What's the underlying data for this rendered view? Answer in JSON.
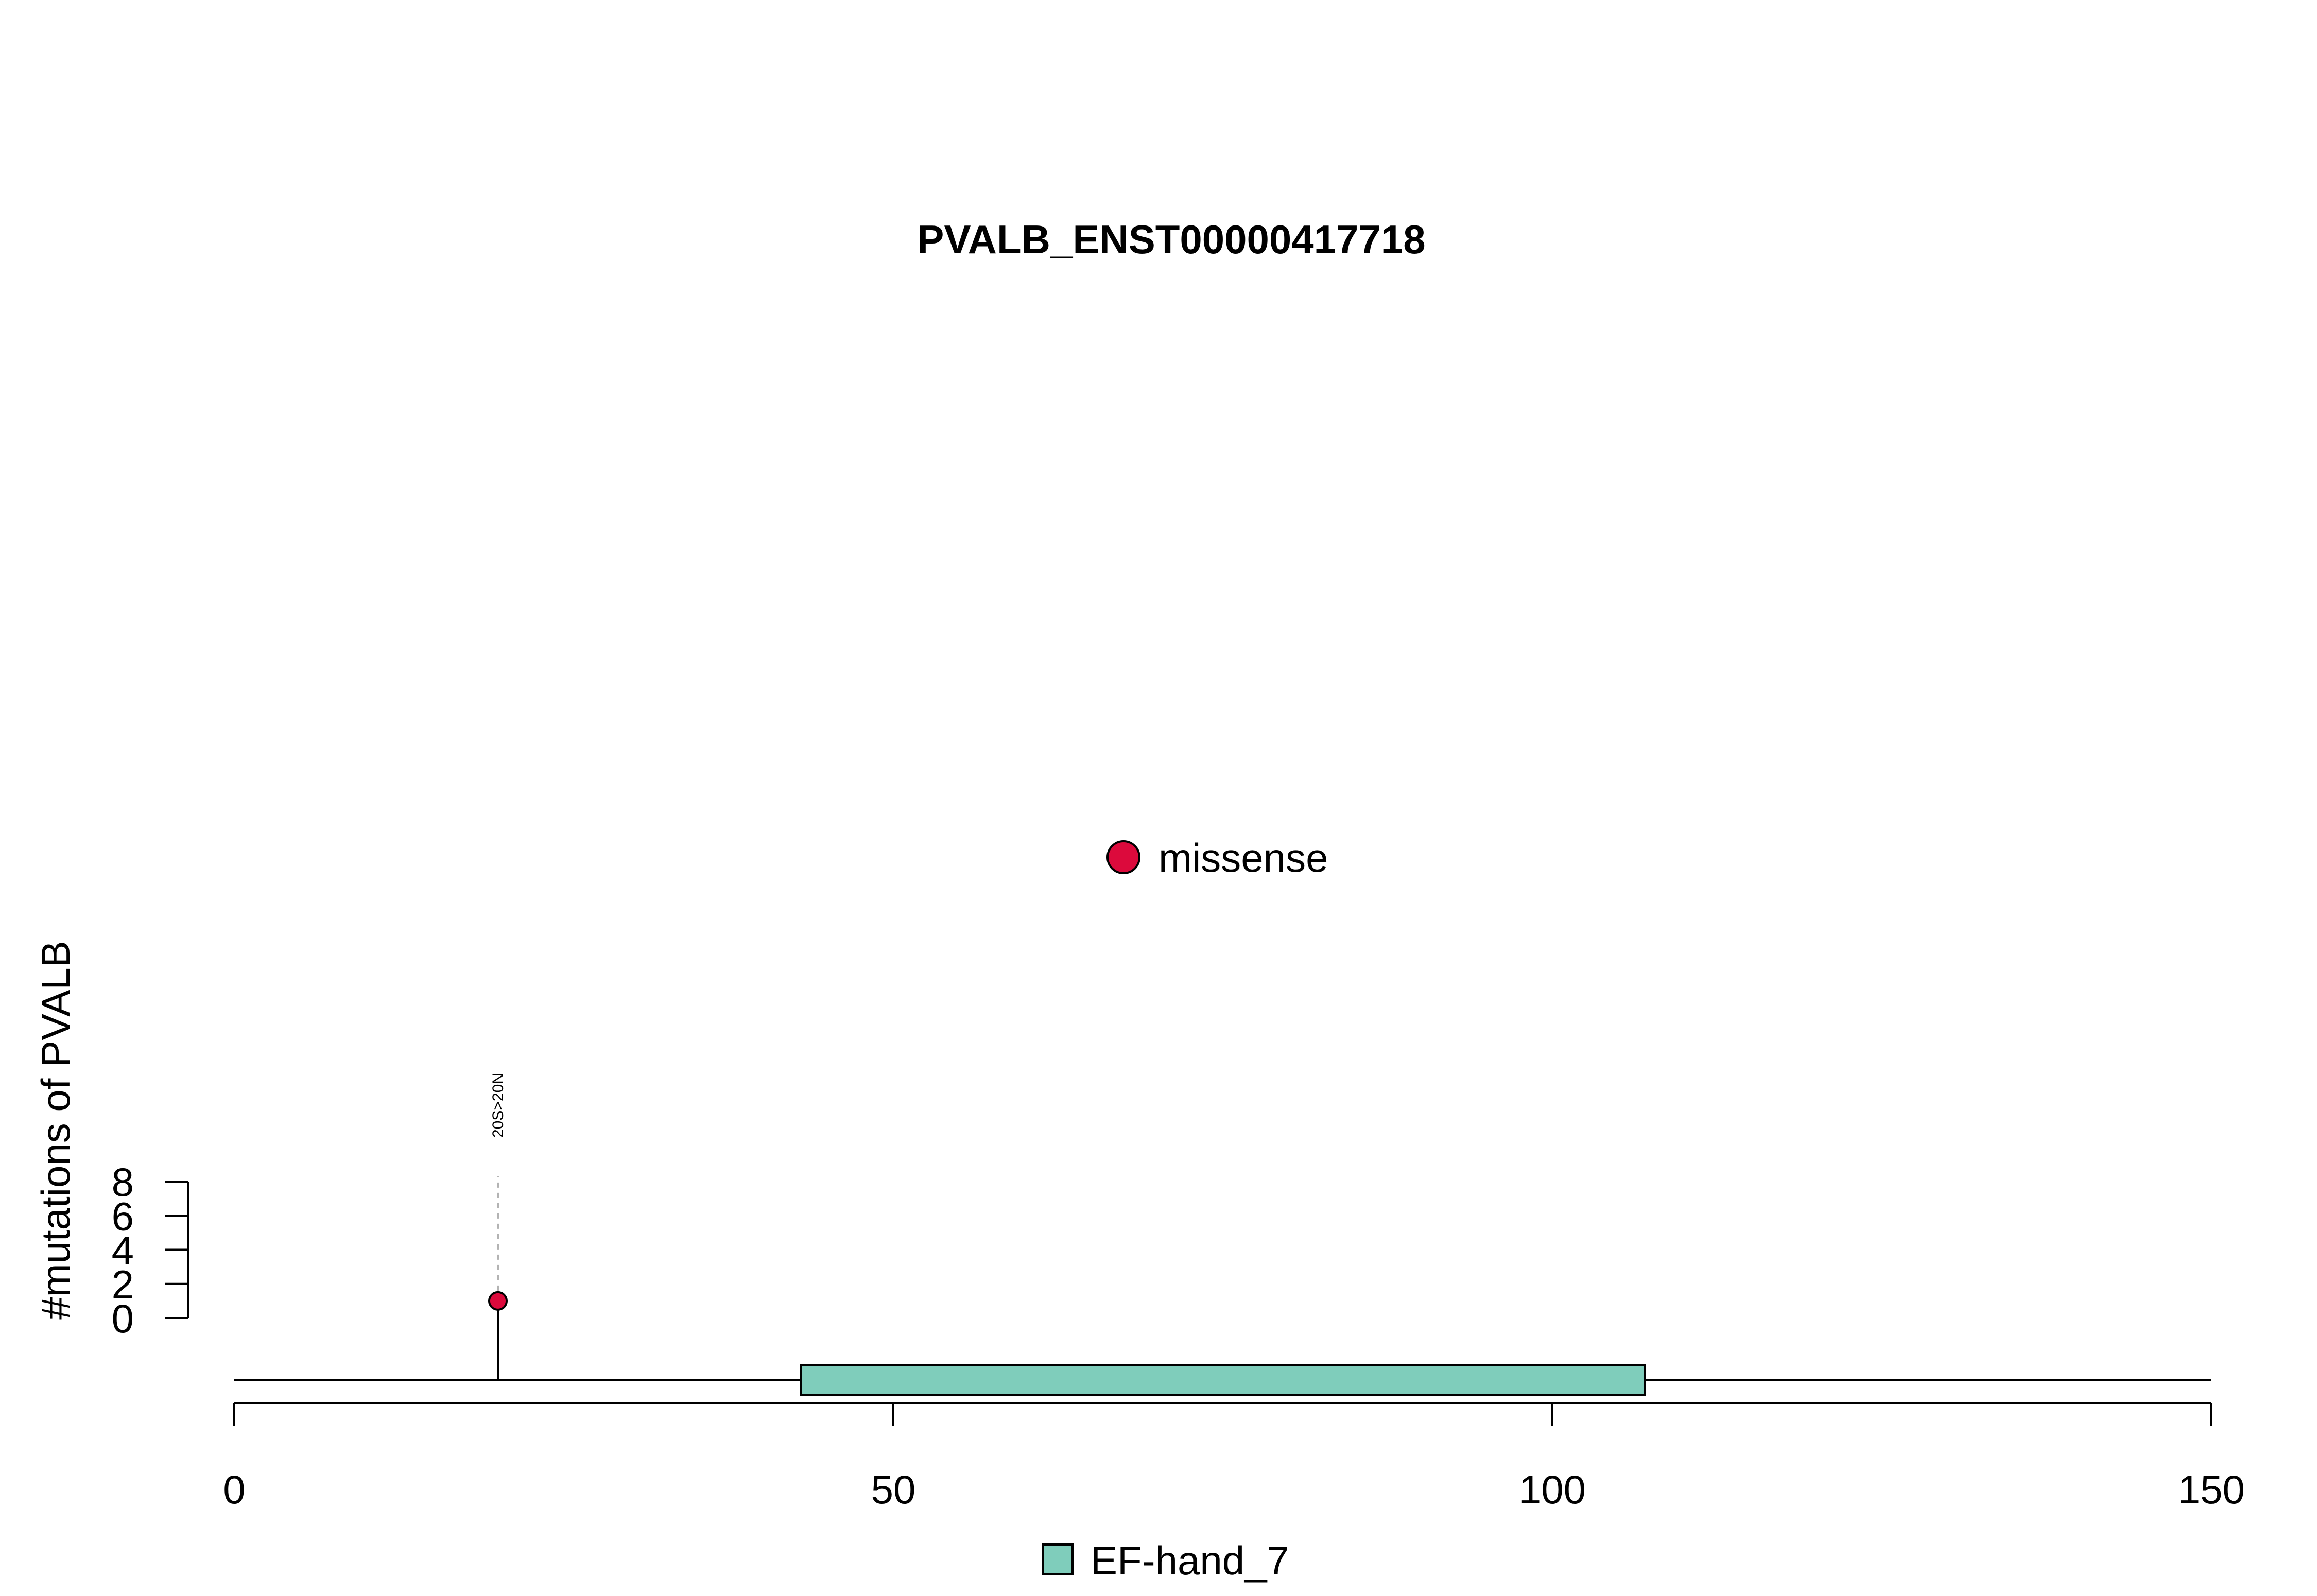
{
  "chart_data": {
    "type": "lollipop",
    "title": "PVALB_ENST00000417718",
    "xlabel": "",
    "ylabel": "#mutations of PVALB",
    "xlim": [
      0,
      150
    ],
    "x_ticks": [
      0,
      50,
      100,
      150
    ],
    "ylim": [
      0,
      8
    ],
    "y_ticks": [
      0,
      2,
      4,
      6,
      8
    ],
    "protein_length": 150,
    "mutations": [
      {
        "position": 20,
        "count": 1,
        "label": "20S>20N",
        "type": "missense"
      }
    ],
    "domains": [
      {
        "name": "EF-hand_7",
        "start": 43,
        "end": 107,
        "color": "#7fcdbb"
      }
    ],
    "mutation_legend": [
      {
        "label": "missense",
        "color": "#dc0a3c"
      }
    ],
    "domain_legend": [
      {
        "label": "EF-hand_7",
        "color": "#7fcdbb"
      }
    ]
  }
}
